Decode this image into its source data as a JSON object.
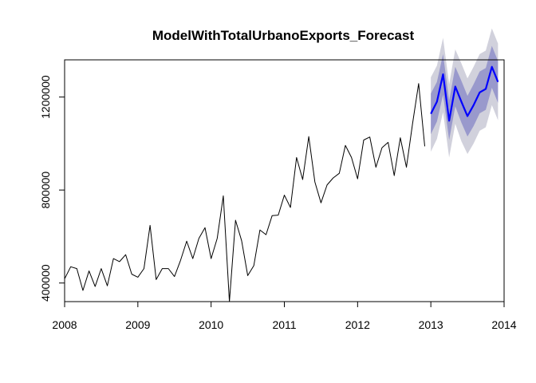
{
  "chart_data": {
    "type": "line",
    "title": "ModelWithTotalUrbanoExports_Forecast",
    "xlabel": "",
    "ylabel": "",
    "xlim": [
      2008,
      2014
    ],
    "ylim": [
      320000,
      1360000
    ],
    "x_ticks": [
      2008,
      2009,
      2010,
      2011,
      2012,
      2013,
      2014
    ],
    "x_tick_labels": [
      "2008",
      "2009",
      "2010",
      "2011",
      "2012",
      "2013",
      "2014"
    ],
    "y_ticks": [
      400000,
      800000,
      1200000
    ],
    "y_tick_labels": [
      "400000",
      "800000",
      "1200000"
    ],
    "grid": false,
    "legend": "none",
    "series": [
      {
        "role": "observed",
        "color": "#000000",
        "x_start": 2008,
        "step": 0.0833333,
        "values": [
          418000,
          470000,
          462000,
          368000,
          452000,
          385000,
          462000,
          388000,
          505000,
          492000,
          522000,
          438000,
          425000,
          462000,
          648000,
          415000,
          462000,
          462000,
          428000,
          498000,
          580000,
          505000,
          592000,
          638000,
          505000,
          592000,
          775000,
          320000,
          670000,
          582000,
          432000,
          475000,
          628000,
          608000,
          690000,
          692000,
          778000,
          725000,
          940000,
          845000,
          1030000,
          835000,
          745000,
          822000,
          852000,
          872000,
          992000,
          940000,
          848000,
          1015000,
          1028000,
          898000,
          982000,
          1005000,
          862000,
          1025000,
          898000,
          1085000,
          1258000,
          988000
        ]
      },
      {
        "role": "forecast",
        "color": "#0000ff",
        "x_start": 2013,
        "step": 0.0833333,
        "values": [
          1128000,
          1180000,
          1298000,
          1098000,
          1245000,
          1180000,
          1118000,
          1165000,
          1220000,
          1235000,
          1330000,
          1265000
        ]
      }
    ],
    "intervals": [
      {
        "level": "outer",
        "color": "#d1d1dc",
        "lower": [
          965000,
          1020000,
          1135000,
          940000,
          1085000,
          1010000,
          955000,
          1000000,
          1055000,
          1070000,
          1165000,
          1100000
        ],
        "upper": [
          1285000,
          1335000,
          1455000,
          1255000,
          1405000,
          1345000,
          1280000,
          1330000,
          1385000,
          1400000,
          1495000,
          1430000
        ]
      },
      {
        "level": "inner",
        "color": "#9999cc",
        "lower": [
          1040000,
          1095000,
          1210000,
          1015000,
          1160000,
          1090000,
          1030000,
          1075000,
          1130000,
          1145000,
          1240000,
          1175000
        ],
        "upper": [
          1215000,
          1265000,
          1385000,
          1185000,
          1330000,
          1270000,
          1205000,
          1255000,
          1310000,
          1325000,
          1420000,
          1355000
        ]
      }
    ]
  }
}
